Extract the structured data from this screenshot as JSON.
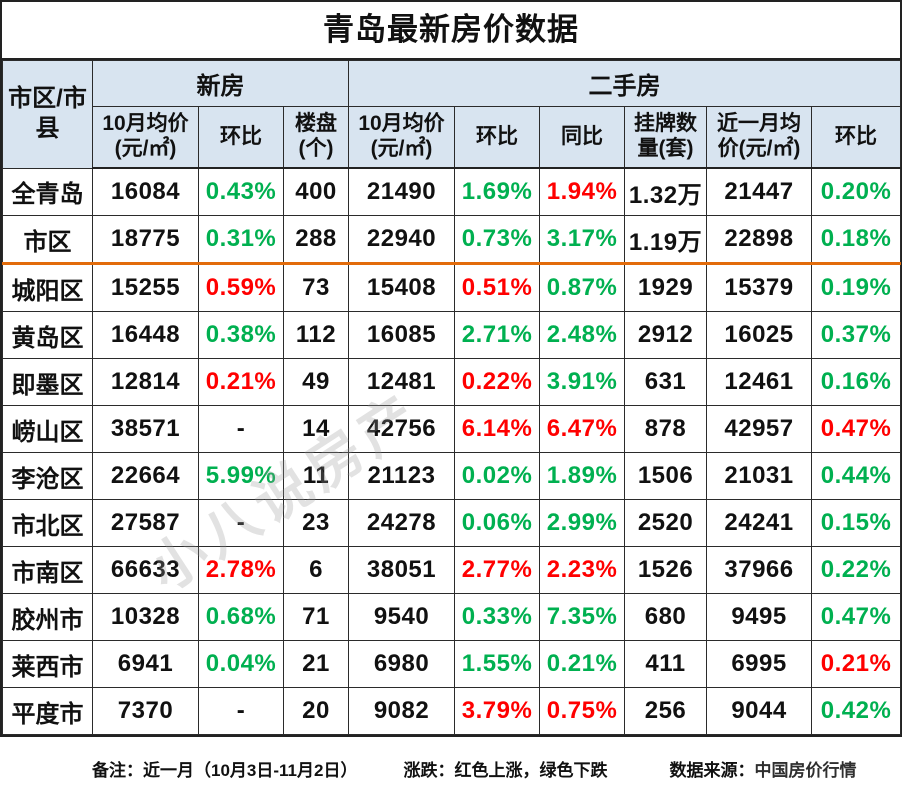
{
  "title": "青岛最新房价数据",
  "colors": {
    "up_red": "#FF0000",
    "down_green": "#00B050",
    "header_bg": "#D8E4F0",
    "divider_orange": "#E26B0A"
  },
  "table": {
    "corner_header": "市区/市\n县",
    "group_headers": [
      {
        "label": "新房"
      },
      {
        "label": "二手房"
      }
    ],
    "sub_headers": [
      "10月均价\n(元/㎡)",
      "环比",
      "楼盘\n(个)",
      "10月均价\n(元/㎡)",
      "环比",
      "同比",
      "挂牌数\n量(套)",
      "近一月均\n价(元/㎡)",
      "环比"
    ],
    "divider_before_index": 2,
    "rows": [
      {
        "name": "全青岛",
        "cells": [
          {
            "v": "16084",
            "c": "k"
          },
          {
            "v": "0.43%",
            "c": "g"
          },
          {
            "v": "400",
            "c": "k"
          },
          {
            "v": "21490",
            "c": "k"
          },
          {
            "v": "1.69%",
            "c": "g"
          },
          {
            "v": "1.94%",
            "c": "r"
          },
          {
            "v": "1.32万",
            "c": "k"
          },
          {
            "v": "21447",
            "c": "k"
          },
          {
            "v": "0.20%",
            "c": "g"
          }
        ]
      },
      {
        "name": "市区",
        "cells": [
          {
            "v": "18775",
            "c": "k"
          },
          {
            "v": "0.31%",
            "c": "g"
          },
          {
            "v": "288",
            "c": "k"
          },
          {
            "v": "22940",
            "c": "k"
          },
          {
            "v": "0.73%",
            "c": "g"
          },
          {
            "v": "3.17%",
            "c": "g"
          },
          {
            "v": "1.19万",
            "c": "k"
          },
          {
            "v": "22898",
            "c": "k"
          },
          {
            "v": "0.18%",
            "c": "g"
          }
        ]
      },
      {
        "name": "城阳区",
        "cells": [
          {
            "v": "15255",
            "c": "k"
          },
          {
            "v": "0.59%",
            "c": "r"
          },
          {
            "v": "73",
            "c": "k"
          },
          {
            "v": "15408",
            "c": "k"
          },
          {
            "v": "0.51%",
            "c": "r"
          },
          {
            "v": "0.87%",
            "c": "g"
          },
          {
            "v": "1929",
            "c": "k"
          },
          {
            "v": "15379",
            "c": "k"
          },
          {
            "v": "0.19%",
            "c": "g"
          }
        ]
      },
      {
        "name": "黄岛区",
        "cells": [
          {
            "v": "16448",
            "c": "k"
          },
          {
            "v": "0.38%",
            "c": "g"
          },
          {
            "v": "112",
            "c": "k"
          },
          {
            "v": "16085",
            "c": "k"
          },
          {
            "v": "2.71%",
            "c": "g"
          },
          {
            "v": "2.48%",
            "c": "g"
          },
          {
            "v": "2912",
            "c": "k"
          },
          {
            "v": "16025",
            "c": "k"
          },
          {
            "v": "0.37%",
            "c": "g"
          }
        ]
      },
      {
        "name": "即墨区",
        "cells": [
          {
            "v": "12814",
            "c": "k"
          },
          {
            "v": "0.21%",
            "c": "r"
          },
          {
            "v": "49",
            "c": "k"
          },
          {
            "v": "12481",
            "c": "k"
          },
          {
            "v": "0.22%",
            "c": "r"
          },
          {
            "v": "3.91%",
            "c": "g"
          },
          {
            "v": "631",
            "c": "k"
          },
          {
            "v": "12461",
            "c": "k"
          },
          {
            "v": "0.16%",
            "c": "g"
          }
        ]
      },
      {
        "name": "崂山区",
        "cells": [
          {
            "v": "38571",
            "c": "k"
          },
          {
            "v": "-",
            "c": "k"
          },
          {
            "v": "14",
            "c": "k"
          },
          {
            "v": "42756",
            "c": "k"
          },
          {
            "v": "6.14%",
            "c": "r"
          },
          {
            "v": "6.47%",
            "c": "r"
          },
          {
            "v": "878",
            "c": "k"
          },
          {
            "v": "42957",
            "c": "k"
          },
          {
            "v": "0.47%",
            "c": "r"
          }
        ]
      },
      {
        "name": "李沧区",
        "cells": [
          {
            "v": "22664",
            "c": "k"
          },
          {
            "v": "5.99%",
            "c": "g"
          },
          {
            "v": "11",
            "c": "k"
          },
          {
            "v": "21123",
            "c": "k"
          },
          {
            "v": "0.02%",
            "c": "g"
          },
          {
            "v": "1.89%",
            "c": "g"
          },
          {
            "v": "1506",
            "c": "k"
          },
          {
            "v": "21031",
            "c": "k"
          },
          {
            "v": "0.44%",
            "c": "g"
          }
        ]
      },
      {
        "name": "市北区",
        "cells": [
          {
            "v": "27587",
            "c": "k"
          },
          {
            "v": "-",
            "c": "k"
          },
          {
            "v": "23",
            "c": "k"
          },
          {
            "v": "24278",
            "c": "k"
          },
          {
            "v": "0.06%",
            "c": "g"
          },
          {
            "v": "2.99%",
            "c": "g"
          },
          {
            "v": "2520",
            "c": "k"
          },
          {
            "v": "24241",
            "c": "k"
          },
          {
            "v": "0.15%",
            "c": "g"
          }
        ]
      },
      {
        "name": "市南区",
        "cells": [
          {
            "v": "66633",
            "c": "k"
          },
          {
            "v": "2.78%",
            "c": "r"
          },
          {
            "v": "6",
            "c": "k"
          },
          {
            "v": "38051",
            "c": "k"
          },
          {
            "v": "2.77%",
            "c": "r"
          },
          {
            "v": "2.23%",
            "c": "r"
          },
          {
            "v": "1526",
            "c": "k"
          },
          {
            "v": "37966",
            "c": "k"
          },
          {
            "v": "0.22%",
            "c": "g"
          }
        ]
      },
      {
        "name": "胶州市",
        "cells": [
          {
            "v": "10328",
            "c": "k"
          },
          {
            "v": "0.68%",
            "c": "g"
          },
          {
            "v": "71",
            "c": "k"
          },
          {
            "v": "9540",
            "c": "k"
          },
          {
            "v": "0.33%",
            "c": "g"
          },
          {
            "v": "7.35%",
            "c": "g"
          },
          {
            "v": "680",
            "c": "k"
          },
          {
            "v": "9495",
            "c": "k"
          },
          {
            "v": "0.47%",
            "c": "g"
          }
        ]
      },
      {
        "name": "莱西市",
        "cells": [
          {
            "v": "6941",
            "c": "k"
          },
          {
            "v": "0.04%",
            "c": "g"
          },
          {
            "v": "21",
            "c": "k"
          },
          {
            "v": "6980",
            "c": "k"
          },
          {
            "v": "1.55%",
            "c": "g"
          },
          {
            "v": "0.21%",
            "c": "g"
          },
          {
            "v": "411",
            "c": "k"
          },
          {
            "v": "6995",
            "c": "k"
          },
          {
            "v": "0.21%",
            "c": "r"
          }
        ]
      },
      {
        "name": "平度市",
        "cells": [
          {
            "v": "7370",
            "c": "k"
          },
          {
            "v": "-",
            "c": "k"
          },
          {
            "v": "20",
            "c": "k"
          },
          {
            "v": "9082",
            "c": "k"
          },
          {
            "v": "3.79%",
            "c": "r"
          },
          {
            "v": "0.75%",
            "c": "r"
          },
          {
            "v": "256",
            "c": "k"
          },
          {
            "v": "9044",
            "c": "k"
          },
          {
            "v": "0.42%",
            "c": "g"
          }
        ]
      }
    ]
  },
  "footer": {
    "note": "备注：近一月（10月3日-11月2日）",
    "legend": "涨跌：红色上涨，绿色下跌",
    "source_label": "数据来源：",
    "source_name": "中国房价行情"
  },
  "watermark": "小八说房产",
  "chart_data": {
    "type": "table",
    "title": "青岛最新房价数据",
    "columns": [
      "市区/市县",
      "新房-10月均价(元/㎡)",
      "新房-环比",
      "新房-楼盘(个)",
      "二手房-10月均价(元/㎡)",
      "二手房-环比",
      "二手房-同比",
      "二手房-挂牌数量(套)",
      "二手房-近一月均价(元/㎡)",
      "二手房-近一月环比"
    ],
    "rows": [
      [
        "全青岛",
        16084,
        "0.43%",
        400,
        21490,
        "1.69%",
        "1.94%",
        "1.32万",
        21447,
        "0.20%"
      ],
      [
        "市区",
        18775,
        "0.31%",
        288,
        22940,
        "0.73%",
        "3.17%",
        "1.19万",
        22898,
        "0.18%"
      ],
      [
        "城阳区",
        15255,
        "0.59%",
        73,
        15408,
        "0.51%",
        "0.87%",
        1929,
        15379,
        "0.19%"
      ],
      [
        "黄岛区",
        16448,
        "0.38%",
        112,
        16085,
        "2.71%",
        "2.48%",
        2912,
        16025,
        "0.37%"
      ],
      [
        "即墨区",
        12814,
        "0.21%",
        49,
        12481,
        "0.22%",
        "3.91%",
        631,
        12461,
        "0.16%"
      ],
      [
        "崂山区",
        38571,
        "-",
        14,
        42756,
        "6.14%",
        "6.47%",
        878,
        42957,
        "0.47%"
      ],
      [
        "李沧区",
        22664,
        "5.99%",
        11,
        21123,
        "0.02%",
        "1.89%",
        1506,
        21031,
        "0.44%"
      ],
      [
        "市北区",
        27587,
        "-",
        23,
        24278,
        "0.06%",
        "2.99%",
        2520,
        24241,
        "0.15%"
      ],
      [
        "市南区",
        66633,
        "2.78%",
        6,
        38051,
        "2.77%",
        "2.23%",
        1526,
        37966,
        "0.22%"
      ],
      [
        "胶州市",
        10328,
        "0.68%",
        71,
        9540,
        "0.33%",
        "7.35%",
        680,
        9495,
        "0.47%"
      ],
      [
        "莱西市",
        6941,
        "0.04%",
        21,
        6980,
        "1.55%",
        "0.21%",
        411,
        6995,
        "0.21%"
      ],
      [
        "平度市",
        7370,
        "-",
        20,
        9082,
        "3.79%",
        "0.75%",
        256,
        9044,
        "0.42%"
      ]
    ],
    "legend_note": "红色=上涨, 绿色=下跌"
  }
}
